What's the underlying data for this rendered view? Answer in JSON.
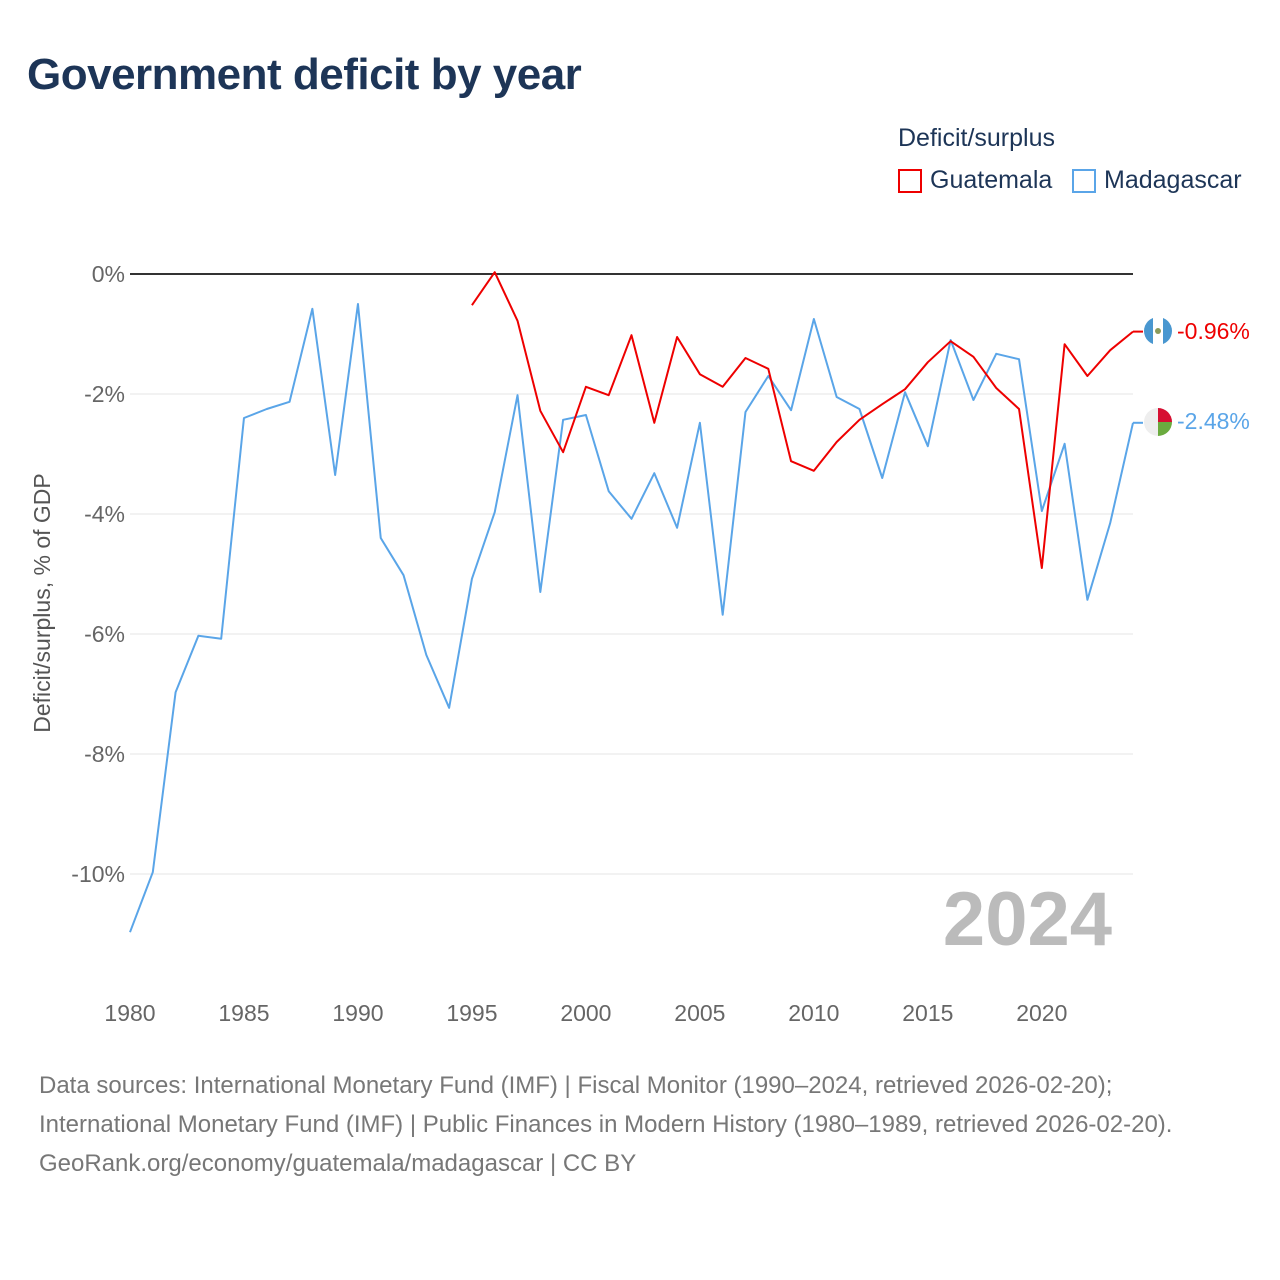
{
  "chart_data": {
    "type": "line",
    "title": "Government deficit by year",
    "ylabel": "Deficit/surplus, % of GDP",
    "xlabel": "",
    "legend_title": "Deficit/surplus",
    "legend_position": "top-right",
    "xlim": [
      1980,
      2024
    ],
    "ylim": [
      -11.2,
      0.3
    ],
    "yticks": [
      0,
      -2,
      -4,
      -6,
      -8,
      -10
    ],
    "ytick_labels": [
      "0%",
      "-2%",
      "-4%",
      "-6%",
      "-8%",
      "-10%"
    ],
    "xticks": [
      1980,
      1985,
      1990,
      1995,
      2000,
      2005,
      2010,
      2015,
      2020
    ],
    "xtick_labels": [
      "1980",
      "1985",
      "1990",
      "1995",
      "2000",
      "2005",
      "2010",
      "2015",
      "2020"
    ],
    "year_watermark": "2024",
    "series": [
      {
        "name": "Guatemala",
        "color": "#ee0000",
        "end_label": "-0.96%",
        "x": [
          1995,
          1996,
          1997,
          1998,
          1999,
          2000,
          2001,
          2002,
          2003,
          2004,
          2005,
          2006,
          2007,
          2008,
          2009,
          2010,
          2011,
          2012,
          2013,
          2014,
          2015,
          2016,
          2017,
          2018,
          2019,
          2020,
          2021,
          2022,
          2023,
          2024
        ],
        "values": [
          -0.52,
          0.03,
          -0.78,
          -2.28,
          -2.97,
          -1.88,
          -2.02,
          -1.02,
          -2.48,
          -1.05,
          -1.67,
          -1.88,
          -1.4,
          -1.58,
          -3.12,
          -3.28,
          -2.8,
          -2.43,
          -2.17,
          -1.92,
          -1.47,
          -1.12,
          -1.38,
          -1.9,
          -2.25,
          -4.9,
          -1.17,
          -1.7,
          -1.27,
          -0.96
        ]
      },
      {
        "name": "Madagascar",
        "color": "#5aa5e8",
        "end_label": "-2.48%",
        "x": [
          1980,
          1981,
          1982,
          1983,
          1984,
          1985,
          1986,
          1987,
          1988,
          1989,
          1990,
          1991,
          1992,
          1993,
          1994,
          1995,
          1996,
          1997,
          1998,
          1999,
          2000,
          2001,
          2002,
          2003,
          2004,
          2005,
          2006,
          2007,
          2008,
          2009,
          2010,
          2011,
          2012,
          2013,
          2014,
          2015,
          2016,
          2017,
          2018,
          2019,
          2020,
          2021,
          2022,
          2023,
          2024
        ],
        "values": [
          -10.97,
          -9.97,
          -6.97,
          -6.03,
          -6.08,
          -2.4,
          -2.25,
          -2.13,
          -0.58,
          -3.35,
          -0.5,
          -4.4,
          -5.02,
          -6.35,
          -7.23,
          -5.08,
          -3.97,
          -2.02,
          -5.3,
          -2.43,
          -2.35,
          -3.62,
          -4.08,
          -3.32,
          -4.23,
          -2.48,
          -5.68,
          -2.3,
          -1.7,
          -2.27,
          -0.75,
          -2.05,
          -2.25,
          -3.4,
          -1.97,
          -2.87,
          -1.1,
          -2.1,
          -1.33,
          -1.42,
          -3.95,
          -2.83,
          -5.43,
          -4.15,
          -2.48
        ]
      }
    ]
  },
  "source": {
    "line1": "Data sources: International Monetary Fund (IMF) | Fiscal Monitor (1990–2024, retrieved 2026-02-20); International Monetary Fund (IMF) | Public Finances in Modern History (1980–1989, retrieved 2026-02-20).",
    "line2": "GeoRank.org/economy/guatemala/madagascar | CC BY"
  }
}
